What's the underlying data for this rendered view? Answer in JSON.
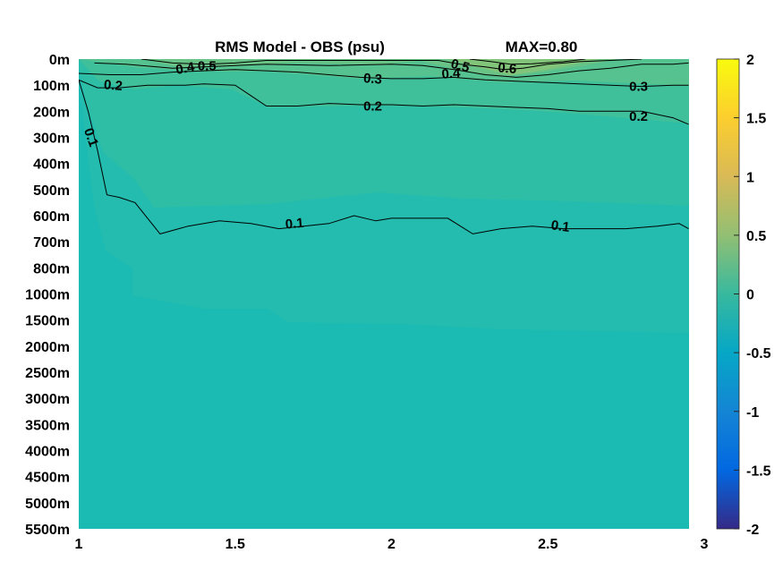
{
  "chart_data": {
    "type": "contour",
    "title": "RMS Model - OBS (psu)",
    "max_label": "MAX=0.80",
    "xlim": [
      1,
      3
    ],
    "x_ticks": [
      1,
      1.5,
      2,
      2.5,
      3
    ],
    "x_tick_labels": [
      "1",
      "1.5",
      "2",
      "2.5",
      "3"
    ],
    "y_tick_labels": [
      "0m",
      "100m",
      "200m",
      "300m",
      "400m",
      "500m",
      "600m",
      "700m",
      "800m",
      "1000m",
      "1500m",
      "2000m",
      "2500m",
      "3000m",
      "3500m",
      "4000m",
      "4500m",
      "5000m",
      "5500m"
    ],
    "colorbar": {
      "range": [
        -2,
        2
      ],
      "ticks": [
        2,
        1.5,
        1,
        0.5,
        0,
        -0.5,
        -1,
        -1.5,
        -2
      ],
      "tick_labels": [
        "2",
        "1.5",
        "1",
        "0.5",
        "0",
        "-0.5",
        "-1",
        "-1.5",
        "-2"
      ],
      "colormap": "parula",
      "colors": [
        "#352a87",
        "#0268e1",
        "#1485d4",
        "#06a7c6",
        "#38b99e",
        "#92bf73",
        "#d9ba56",
        "#fcce2e",
        "#f9fb0e"
      ]
    },
    "contours": [
      {
        "level": 0.1,
        "x": [
          1.0,
          1.03,
          1.06,
          1.09,
          1.13,
          1.18,
          1.26,
          1.35,
          1.45,
          1.55,
          1.64,
          1.72,
          1.8,
          1.88,
          1.95,
          2.0,
          2.1,
          2.18,
          2.26,
          2.35,
          2.45,
          2.55,
          2.65,
          2.75,
          2.85,
          2.92,
          2.95
        ],
        "y": [
          0.8,
          2.0,
          3.5,
          5.2,
          5.3,
          5.5,
          6.7,
          6.4,
          6.2,
          6.3,
          6.5,
          6.4,
          6.3,
          6.0,
          6.2,
          6.1,
          6.1,
          6.1,
          6.7,
          6.5,
          6.4,
          6.5,
          6.5,
          6.5,
          6.4,
          6.3,
          6.5
        ]
      },
      {
        "level": 0.2,
        "x": [
          1.0,
          1.06,
          1.13,
          1.22,
          1.34,
          1.4,
          1.5,
          1.55,
          1.6,
          1.7,
          1.8,
          1.9,
          2.0,
          2.1,
          2.2,
          2.3,
          2.4,
          2.5,
          2.6,
          2.7,
          2.8,
          2.9,
          2.95
        ],
        "y": [
          0.8,
          1.1,
          1.1,
          1.0,
          1.0,
          0.95,
          1.0,
          1.4,
          1.8,
          1.8,
          1.7,
          1.75,
          1.75,
          1.8,
          1.75,
          1.8,
          1.85,
          1.9,
          2.0,
          2.0,
          2.0,
          2.25,
          2.5
        ]
      },
      {
        "level": 0.3,
        "x": [
          1.0,
          1.1,
          1.2,
          1.3,
          1.4,
          1.5,
          1.6,
          1.7,
          1.8,
          1.9,
          2.0,
          2.1,
          2.2,
          2.3,
          2.4,
          2.5,
          2.6,
          2.7,
          2.8,
          2.9,
          2.95
        ],
        "y": [
          0.55,
          0.6,
          0.6,
          0.5,
          0.45,
          0.4,
          0.45,
          0.5,
          0.6,
          0.7,
          0.75,
          0.75,
          0.7,
          0.8,
          0.85,
          0.9,
          0.95,
          1.0,
          1.05,
          1.0,
          1.0
        ]
      },
      {
        "level": 0.4,
        "x": [
          1.05,
          1.15,
          1.3,
          1.4,
          1.6,
          1.8,
          2.0,
          2.1,
          2.2,
          2.3,
          2.4,
          2.5,
          2.6,
          2.7,
          2.8,
          2.9,
          2.95
        ],
        "y": [
          0.15,
          0.2,
          0.35,
          0.3,
          0.2,
          0.25,
          0.2,
          0.25,
          0.4,
          0.6,
          0.7,
          0.6,
          0.45,
          0.35,
          0.2,
          0.2,
          0.15
        ]
      },
      {
        "level": 0.5,
        "x": [
          1.2,
          1.3,
          1.4,
          1.5,
          1.6,
          2.15,
          2.22,
          2.3,
          2.36,
          2.42,
          2.5,
          2.6,
          2.7,
          2.8
        ],
        "y": [
          0.0,
          0.15,
          0.2,
          0.15,
          0.05,
          0.05,
          0.2,
          0.3,
          0.4,
          0.35,
          0.2,
          0.1,
          0.05,
          0.0
        ]
      },
      {
        "level": 0.6,
        "x": [
          2.25,
          2.32,
          2.38,
          2.45,
          2.55,
          2.62
        ],
        "y": [
          0.0,
          0.1,
          0.2,
          0.18,
          0.1,
          0.0
        ]
      }
    ],
    "contour_labels": [
      {
        "text": "0.1",
        "x": 1.04,
        "y": 3.0,
        "angle": 70
      },
      {
        "text": "0.1",
        "x": 1.69,
        "y": 6.3,
        "angle": -5
      },
      {
        "text": "0.1",
        "x": 2.54,
        "y": 6.4,
        "angle": 8
      },
      {
        "text": "0.2",
        "x": 1.11,
        "y": 1.0,
        "angle": 5
      },
      {
        "text": "0.2",
        "x": 1.94,
        "y": 1.8,
        "angle": 0
      },
      {
        "text": "0.2",
        "x": 2.79,
        "y": 2.2,
        "angle": 0
      },
      {
        "text": "0.3",
        "x": 1.94,
        "y": 0.75,
        "angle": 5
      },
      {
        "text": "0.3",
        "x": 2.79,
        "y": 1.05,
        "angle": 0
      },
      {
        "text": "0.4",
        "x": 1.34,
        "y": 0.35,
        "angle": -10
      },
      {
        "text": "0.4",
        "x": 2.19,
        "y": 0.55,
        "angle": -5
      },
      {
        "text": "0.5",
        "x": 1.41,
        "y": 0.25,
        "angle": 0
      },
      {
        "text": "0.5",
        "x": 2.22,
        "y": 0.25,
        "angle": 15
      },
      {
        "text": "0.6",
        "x": 2.37,
        "y": 0.35,
        "angle": 5
      }
    ]
  }
}
